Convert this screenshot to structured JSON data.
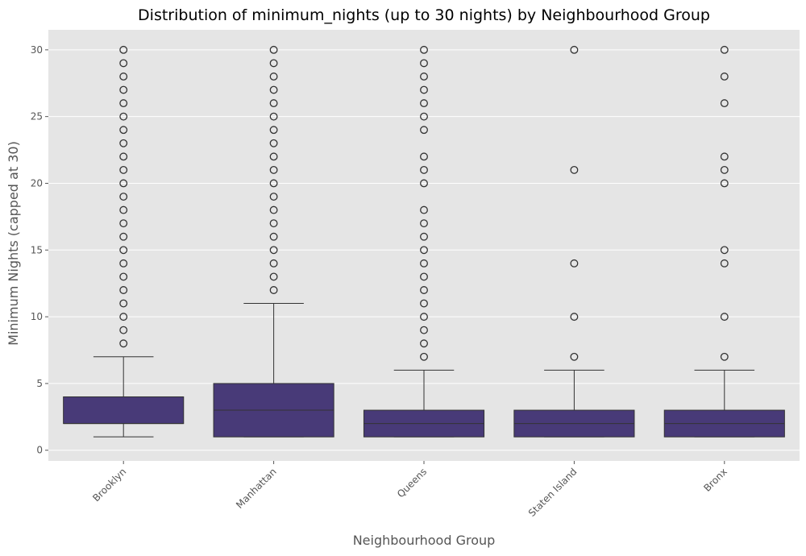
{
  "chart_data": {
    "type": "box",
    "title": "Distribution of minimum_nights (up to 30 nights) by Neighbourhood Group",
    "xlabel": "Neighbourhood Group",
    "ylabel": "Minimum Nights (capped at 30)",
    "ylim": [
      -0.8,
      31.5
    ],
    "yticks": [
      0,
      5,
      10,
      15,
      20,
      25,
      30
    ],
    "grid": true,
    "colors": {
      "plot_background": "#e5e5e5",
      "grid": "#ffffff",
      "box_fill": "#483a78",
      "line": "#333333",
      "tick_text": "#555555"
    },
    "categories": [
      "Brooklyn",
      "Manhattan",
      "Queens",
      "Staten Island",
      "Bronx"
    ],
    "boxes": [
      {
        "category": "Brooklyn",
        "whisker_low": 1,
        "q1": 2,
        "median": 2,
        "q3": 4,
        "whisker_high": 7,
        "outliers": [
          8,
          9,
          10,
          11,
          12,
          13,
          14,
          15,
          16,
          17,
          18,
          19,
          20,
          21,
          22,
          23,
          24,
          25,
          26,
          27,
          28,
          29,
          30
        ]
      },
      {
        "category": "Manhattan",
        "whisker_low": 1,
        "q1": 1,
        "median": 3,
        "q3": 5,
        "whisker_high": 11,
        "outliers": [
          12,
          13,
          14,
          15,
          16,
          17,
          18,
          19,
          20,
          21,
          22,
          23,
          24,
          25,
          26,
          27,
          28,
          29,
          30
        ]
      },
      {
        "category": "Queens",
        "whisker_low": 1,
        "q1": 1,
        "median": 2,
        "q3": 3,
        "whisker_high": 6,
        "outliers": [
          7,
          8,
          9,
          10,
          11,
          12,
          13,
          14,
          15,
          16,
          17,
          18,
          20,
          21,
          22,
          24,
          25,
          26,
          27,
          28,
          29,
          30
        ]
      },
      {
        "category": "Staten Island",
        "whisker_low": 1,
        "q1": 1,
        "median": 2,
        "q3": 3,
        "whisker_high": 6,
        "outliers": [
          7,
          10,
          14,
          21,
          30
        ]
      },
      {
        "category": "Bronx",
        "whisker_low": 1,
        "q1": 1,
        "median": 2,
        "q3": 3,
        "whisker_high": 6,
        "outliers": [
          7,
          10,
          14,
          15,
          20,
          21,
          22,
          26,
          28,
          30
        ]
      }
    ]
  }
}
